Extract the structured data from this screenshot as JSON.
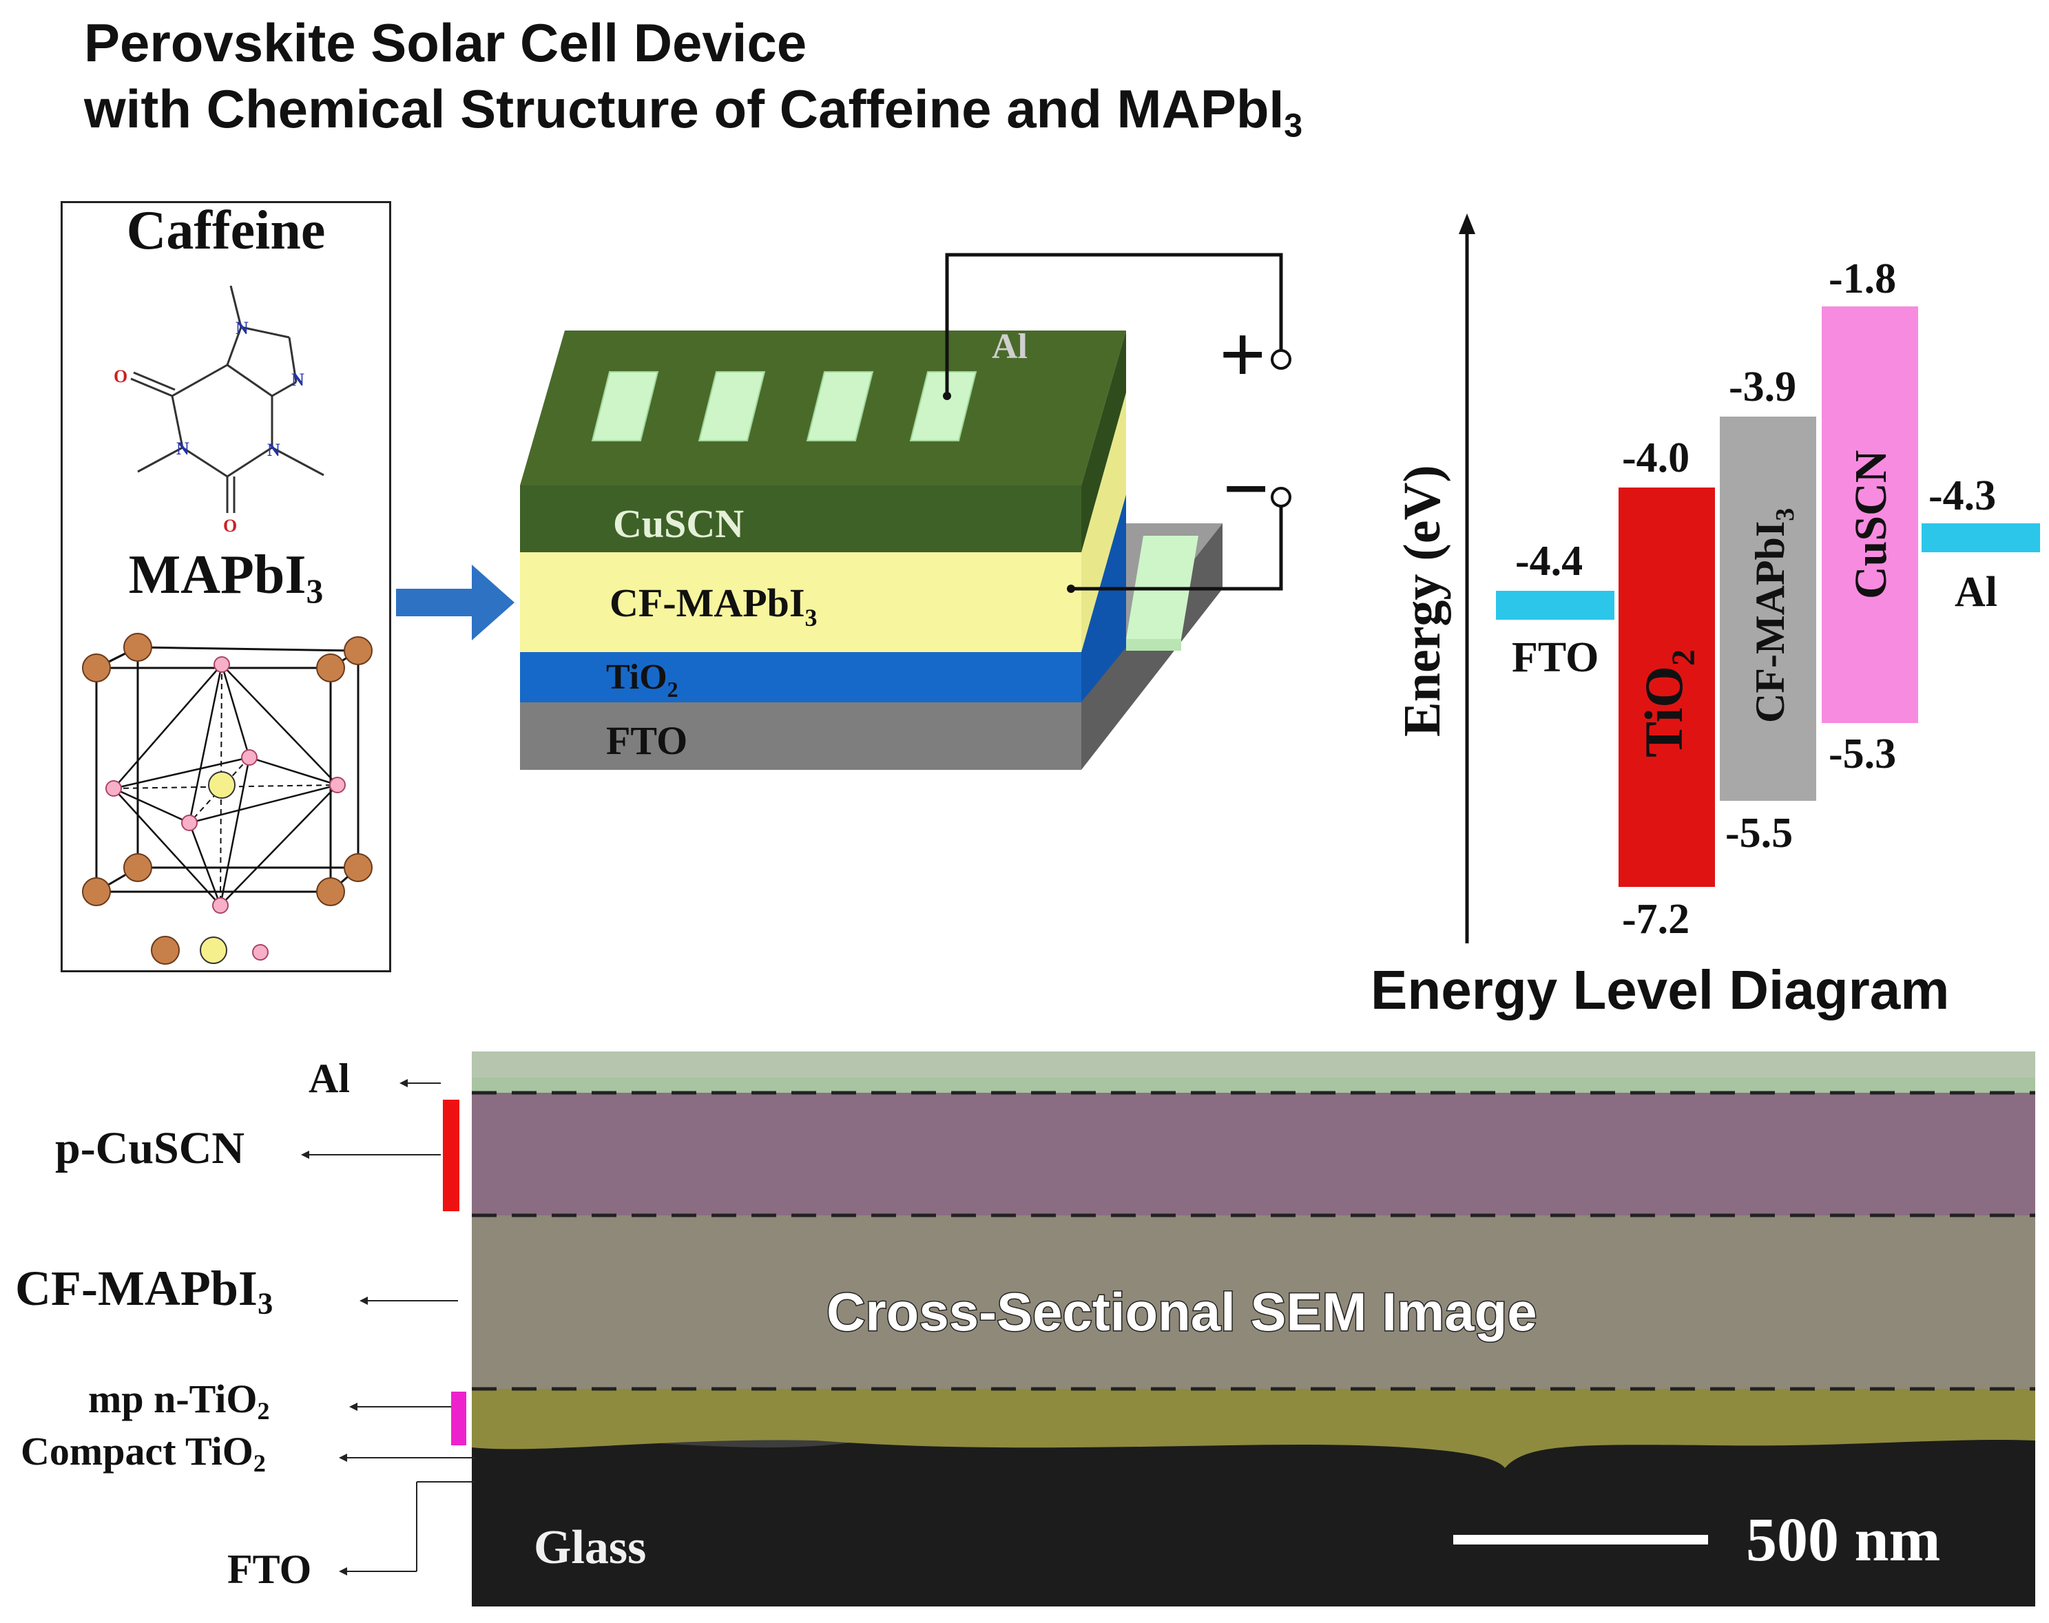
{
  "title": {
    "line1": "Perovskite Solar Cell Device",
    "line2_main": "with Chemical Structure of Caffeine and MAPbI",
    "line2_sub": "3"
  },
  "molecules": {
    "caffeine_label": "Caffeine",
    "mapbi3_main": "MAPbI",
    "mapbi3_sub": "3",
    "atoms": {
      "n": "N",
      "o": "O"
    }
  },
  "device": {
    "layers": {
      "al": "Al",
      "cuscn": "CuSCN",
      "cf_mapbi3_main": "CF-MAPbI",
      "cf_mapbi3_sub": "3",
      "tio2_main": "TiO",
      "tio2_sub": "2",
      "fto": "FTO"
    },
    "terminals": {
      "plus": "+",
      "minus": "−"
    },
    "colors": {
      "al": "#4a6a2a",
      "cuscn": "#3e6127",
      "cf_mapbi3": "#f7f59e",
      "tio2": "#1769c9",
      "fto": "#808080",
      "electrodes": "#cdf5c8"
    }
  },
  "energy_diagram": {
    "axis_label": "Energy (eV)",
    "caption": "Energy Level Diagram",
    "fto": {
      "label": "FTO",
      "level": "-4.4",
      "color": "#2bc6ea"
    },
    "tio2": {
      "label_main": "TiO",
      "label_sub": "2",
      "top": "-4.0",
      "bottom": "-7.2",
      "color": "#e01313"
    },
    "cf_mapbi3": {
      "label_main": "CF-MAPbI",
      "label_sub": "3",
      "top": "-3.9",
      "bottom": "-5.5",
      "color": "#a8a8a8"
    },
    "cuscn": {
      "label": "CuSCN",
      "top": "-1.8",
      "bottom": "-5.3",
      "color": "#f78be0"
    },
    "al": {
      "label": "Al",
      "level": "-4.3",
      "color": "#2bc6ea"
    }
  },
  "sem": {
    "overlay_title": "Cross-Sectional SEM Image",
    "scale_bar": "500 nm",
    "glass": "Glass",
    "labels": {
      "al": "Al",
      "p_cuscn": "p-CuSCN",
      "cf_mapbi3_main": "CF-MAPbI",
      "cf_mapbi3_sub": "3",
      "mp_tio2_main": "mp n-TiO",
      "mp_tio2_sub": "2",
      "compact_tio2_main": "Compact TiO",
      "compact_tio2_sub": "2",
      "fto": "FTO"
    }
  }
}
